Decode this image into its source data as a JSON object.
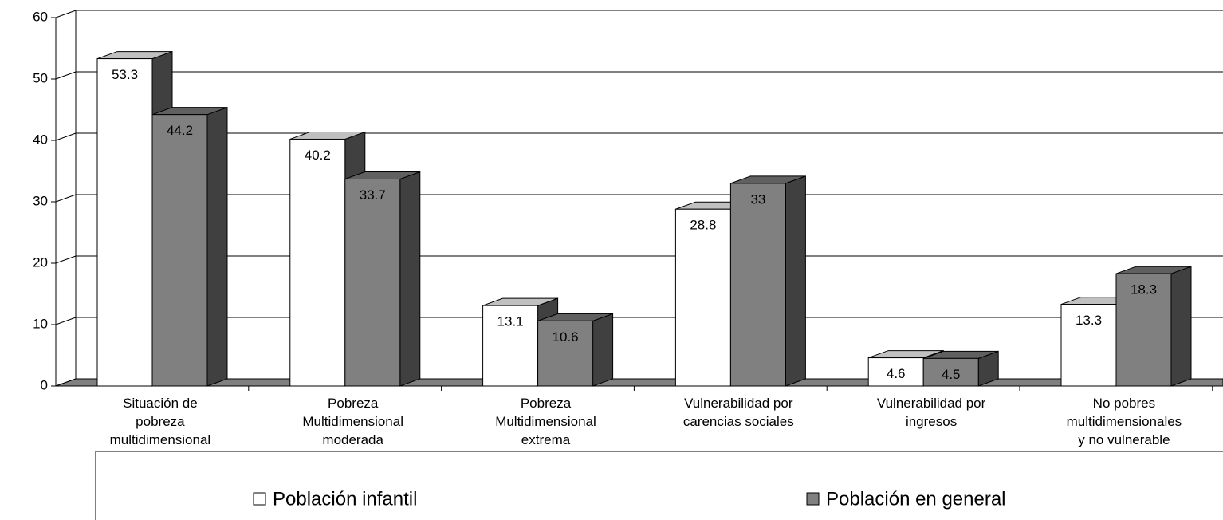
{
  "chart_data": {
    "type": "bar3d",
    "categories": [
      "Situación de\npobreza\nmultidimensional",
      "Pobreza\nMultidimensional\nmoderada",
      "Pobreza\nMultidimensional\nextrema",
      "Vulnerabilidad por\ncarencias sociales",
      "Vulnerabilidad por\ningresos",
      "No pobres\nmultidimensionales\ny no vulnerable"
    ],
    "series": [
      {
        "name": "Población infantil",
        "color": "#ffffff",
        "values": [
          53.3,
          40.2,
          13.1,
          28.8,
          4.6,
          13.3
        ]
      },
      {
        "name": "Población en general",
        "color": "#808080",
        "values": [
          44.2,
          33.7,
          10.6,
          33,
          4.5,
          18.3
        ]
      }
    ],
    "ylim": [
      0,
      60
    ],
    "yticks": [
      0,
      10,
      20,
      30,
      40,
      50,
      60
    ],
    "grid": true,
    "legend": "bottom"
  }
}
